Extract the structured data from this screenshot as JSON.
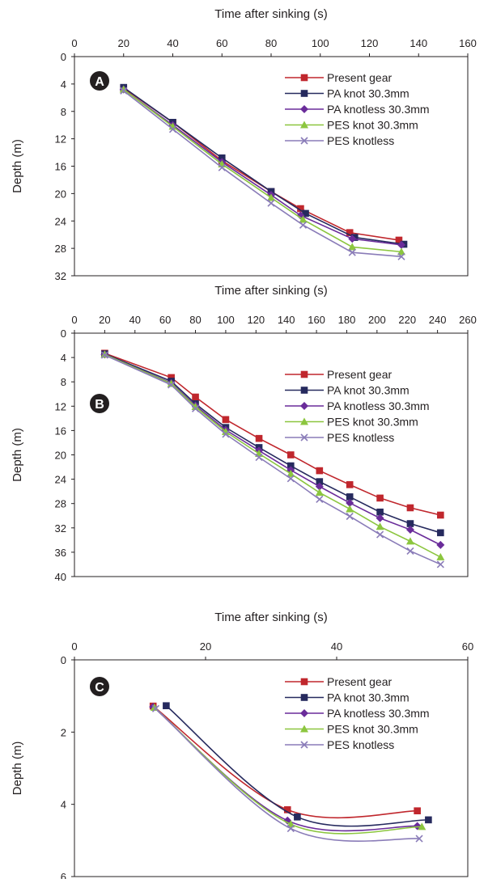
{
  "series_styles": [
    {
      "name": "Present gear",
      "color": "#c0272d",
      "marker": "square"
    },
    {
      "name": "PA knot 30.3mm",
      "color": "#262a5e",
      "marker": "square"
    },
    {
      "name": "PA knotless 30.3mm",
      "color": "#6a2c9a",
      "marker": "diamond"
    },
    {
      "name": "PES knot 30.3mm",
      "color": "#8cc63f",
      "marker": "triangle"
    },
    {
      "name": "PES knotless",
      "color": "#8a7cb8",
      "marker": "x"
    }
  ],
  "chart_data": [
    {
      "type": "line",
      "panel_label": "A",
      "xlabel": "Time after sinking (s)",
      "ylabel": "Depth (m)",
      "xlim": [
        0,
        160
      ],
      "ylim": [
        0,
        32
      ],
      "xticks": [
        0,
        20,
        40,
        60,
        80,
        100,
        120,
        140,
        160
      ],
      "yticks": [
        0,
        4,
        8,
        12,
        16,
        20,
        24,
        28,
        32
      ],
      "x_axis_position": "top",
      "y_inverted": true,
      "legend_position": "top-right",
      "series": [
        {
          "name": "Present gear",
          "x": [
            20,
            40,
            60,
            80,
            92,
            112,
            132
          ],
          "y": [
            4.6,
            9.6,
            15.2,
            19.7,
            22.2,
            25.7,
            26.8
          ]
        },
        {
          "name": "PA knot 30.3mm",
          "x": [
            20,
            40,
            60,
            80,
            94,
            114,
            134
          ],
          "y": [
            4.5,
            9.6,
            14.8,
            19.7,
            22.9,
            26.4,
            27.4
          ]
        },
        {
          "name": "PA knotless 30.3mm",
          "x": [
            20,
            40,
            60,
            80,
            92,
            113,
            133
          ],
          "y": [
            4.8,
            10.0,
            15.4,
            20.2,
            23.2,
            26.6,
            27.5
          ]
        },
        {
          "name": "PES knot 30.3mm",
          "x": [
            20,
            40,
            60,
            80,
            93,
            113,
            133
          ],
          "y": [
            4.8,
            10.2,
            15.7,
            20.6,
            23.8,
            27.8,
            28.5
          ]
        },
        {
          "name": "PES knotless",
          "x": [
            20,
            40,
            60,
            80,
            93,
            113,
            133
          ],
          "y": [
            5.0,
            10.6,
            16.2,
            21.4,
            24.6,
            28.6,
            29.2
          ]
        }
      ]
    },
    {
      "type": "line",
      "panel_label": "B",
      "xlabel": "Time after sinking (s)",
      "ylabel": "Depth (m)",
      "xlim": [
        0,
        260
      ],
      "ylim": [
        0,
        40
      ],
      "xticks": [
        0,
        20,
        40,
        60,
        80,
        100,
        120,
        140,
        160,
        180,
        200,
        220,
        240,
        260
      ],
      "yticks": [
        0,
        4,
        8,
        12,
        16,
        20,
        24,
        28,
        32,
        36,
        40
      ],
      "x_axis_position": "top",
      "y_inverted": true,
      "legend_position": "top-right",
      "series": [
        {
          "name": "Present gear",
          "x": [
            20,
            64,
            80,
            100,
            122,
            143,
            162,
            182,
            202,
            222,
            242
          ],
          "y": [
            3.3,
            7.3,
            10.5,
            14.2,
            17.3,
            20.0,
            22.6,
            24.9,
            27.1,
            28.7,
            29.9
          ]
        },
        {
          "name": "PA knot 30.3mm",
          "x": [
            20,
            64,
            80,
            100,
            122,
            143,
            162,
            182,
            202,
            222,
            242
          ],
          "y": [
            3.4,
            7.9,
            11.6,
            15.5,
            18.8,
            21.8,
            24.4,
            26.9,
            29.4,
            31.3,
            32.8
          ]
        },
        {
          "name": "PA knotless 30.3mm",
          "x": [
            20,
            64,
            80,
            100,
            122,
            143,
            162,
            182,
            202,
            222,
            242
          ],
          "y": [
            3.5,
            8.2,
            11.9,
            15.9,
            19.3,
            22.5,
            25.2,
            27.9,
            30.4,
            32.3,
            34.8
          ]
        },
        {
          "name": "PES knot 30.3mm",
          "x": [
            20,
            64,
            80,
            100,
            122,
            143,
            162,
            182,
            202,
            222,
            242
          ],
          "y": [
            3.5,
            8.3,
            12.1,
            16.2,
            19.8,
            23.1,
            26.2,
            28.9,
            31.8,
            34.2,
            36.8
          ]
        },
        {
          "name": "PES knotless",
          "x": [
            20,
            64,
            80,
            100,
            122,
            143,
            162,
            182,
            202,
            222,
            242
          ],
          "y": [
            3.6,
            8.5,
            12.4,
            16.6,
            20.4,
            23.9,
            27.3,
            30.1,
            33.1,
            35.8,
            38.0
          ]
        }
      ]
    },
    {
      "type": "line",
      "panel_label": "C",
      "xlabel": "Time after sinking (s)",
      "ylabel": "Depth (m)",
      "xlim": [
        0,
        60
      ],
      "ylim": [
        0,
        6
      ],
      "xticks": [
        0,
        20,
        40,
        60
      ],
      "yticks": [
        0,
        2,
        4,
        6
      ],
      "x_axis_position": "top",
      "y_inverted": true,
      "legend_position": "top-right",
      "series": [
        {
          "name": "Present gear",
          "x": [
            12,
            32.5,
            52.3
          ],
          "y": [
            1.28,
            4.15,
            4.18
          ]
        },
        {
          "name": "PA knot 30.3mm",
          "x": [
            14,
            34,
            54
          ],
          "y": [
            1.27,
            4.35,
            4.43
          ]
        },
        {
          "name": "PA knotless 30.3mm",
          "x": [
            12,
            32.5,
            52.3
          ],
          "y": [
            1.3,
            4.45,
            4.6
          ]
        },
        {
          "name": "PES knot 30.3mm",
          "x": [
            12.2,
            33,
            53
          ],
          "y": [
            1.32,
            4.55,
            4.62
          ]
        },
        {
          "name": "PES knotless",
          "x": [
            12.4,
            33,
            52.6
          ],
          "y": [
            1.35,
            4.67,
            4.95
          ]
        }
      ]
    }
  ]
}
